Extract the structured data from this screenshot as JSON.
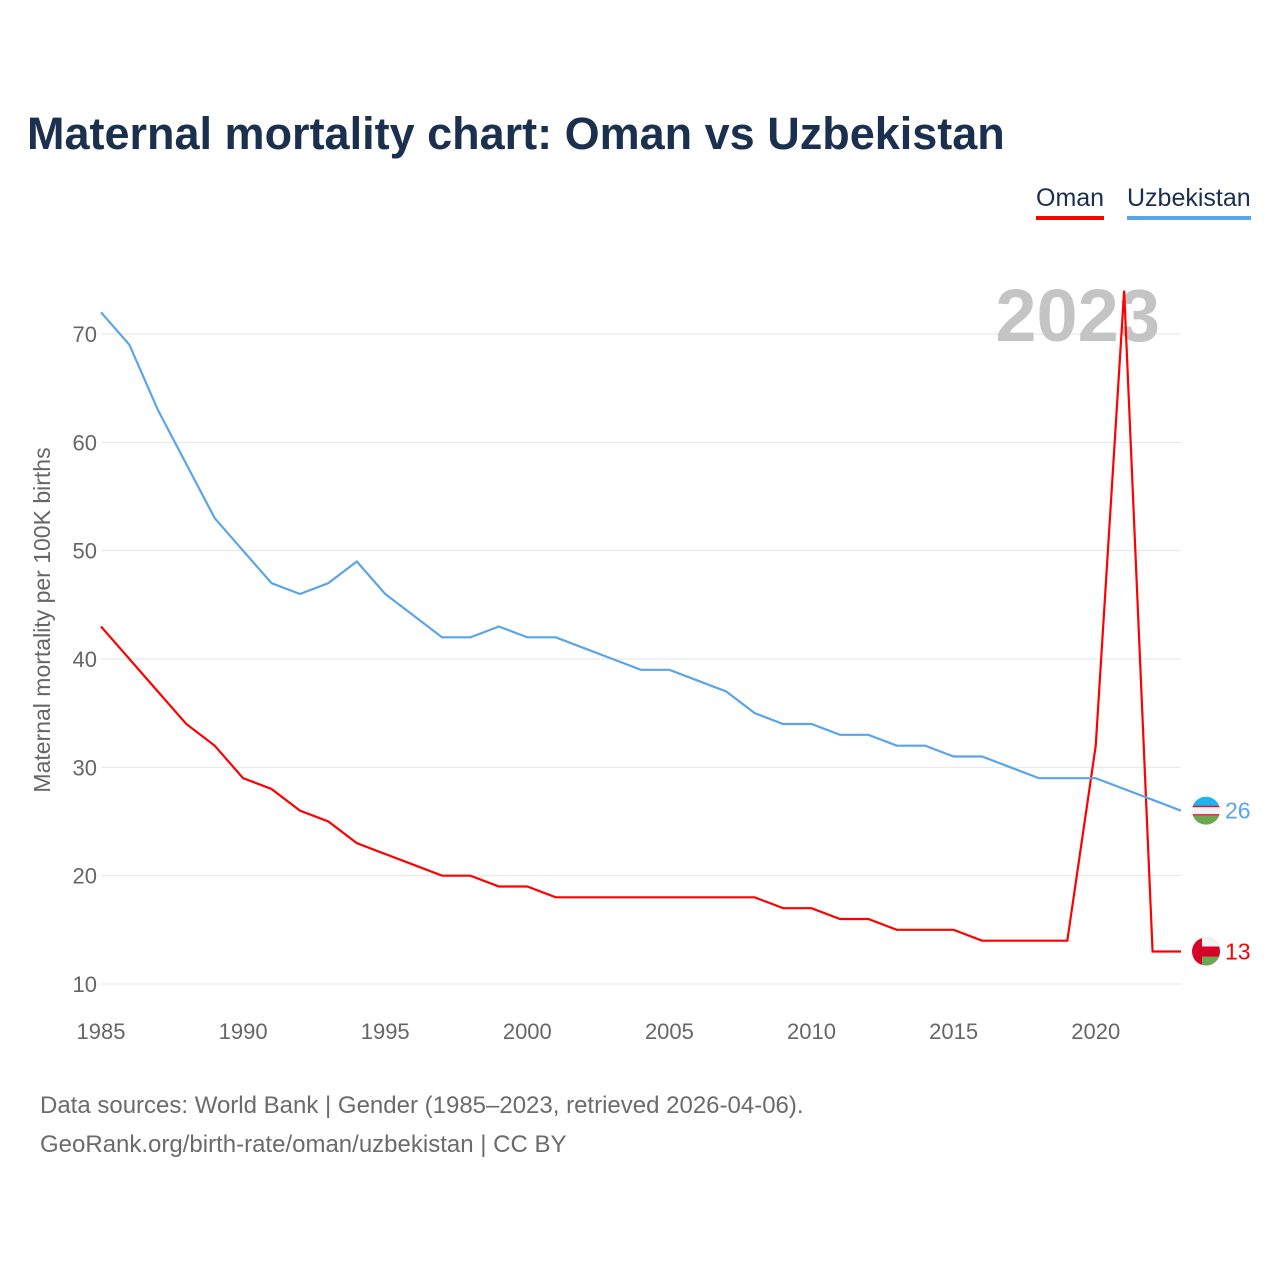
{
  "chart_data": {
    "type": "line",
    "title": "Maternal mortality chart: Oman vs Uzbekistan",
    "ylabel": "Maternal mortality per 100K births",
    "xlabel": "",
    "xlim": [
      1985,
      2023
    ],
    "ylim": [
      10,
      70
    ],
    "x_ticks": [
      1985,
      1990,
      1995,
      2000,
      2005,
      2010,
      2015,
      2020
    ],
    "y_ticks": [
      10,
      20,
      30,
      40,
      50,
      60,
      70
    ],
    "grid": true,
    "year_label": "2023",
    "legend_placement": "top-right",
    "x": [
      1985,
      1986,
      1987,
      1988,
      1989,
      1990,
      1991,
      1992,
      1993,
      1994,
      1995,
      1996,
      1997,
      1998,
      1999,
      2000,
      2001,
      2002,
      2003,
      2004,
      2005,
      2006,
      2007,
      2008,
      2009,
      2010,
      2011,
      2012,
      2013,
      2014,
      2015,
      2016,
      2017,
      2018,
      2019,
      2020,
      2021,
      2022,
      2023
    ],
    "series": [
      {
        "name": "Oman",
        "color": "#ff0000",
        "end_label": "13",
        "values": [
          43,
          40,
          37,
          34,
          32,
          29,
          28,
          26,
          25,
          23,
          22,
          21,
          20,
          20,
          19,
          19,
          18,
          18,
          18,
          18,
          18,
          18,
          18,
          18,
          17,
          17,
          16,
          16,
          15,
          15,
          15,
          14,
          14,
          14,
          14,
          32,
          74,
          13,
          13
        ]
      },
      {
        "name": "Uzbekistan",
        "color": "#5aa5ea",
        "end_label": "26",
        "values": [
          72,
          69,
          63,
          58,
          53,
          50,
          47,
          46,
          47,
          49,
          46,
          44,
          42,
          42,
          43,
          42,
          42,
          41,
          40,
          39,
          39,
          38,
          37,
          35,
          34,
          34,
          33,
          33,
          32,
          32,
          31,
          31,
          30,
          29,
          29,
          29,
          28,
          27,
          26
        ]
      }
    ]
  },
  "footer": {
    "line1": "Data sources: World Bank | Gender (1985–2023, retrieved 2026-04-06).",
    "line2": "GeoRank.org/birth-rate/oman/uzbekistan | CC BY"
  }
}
